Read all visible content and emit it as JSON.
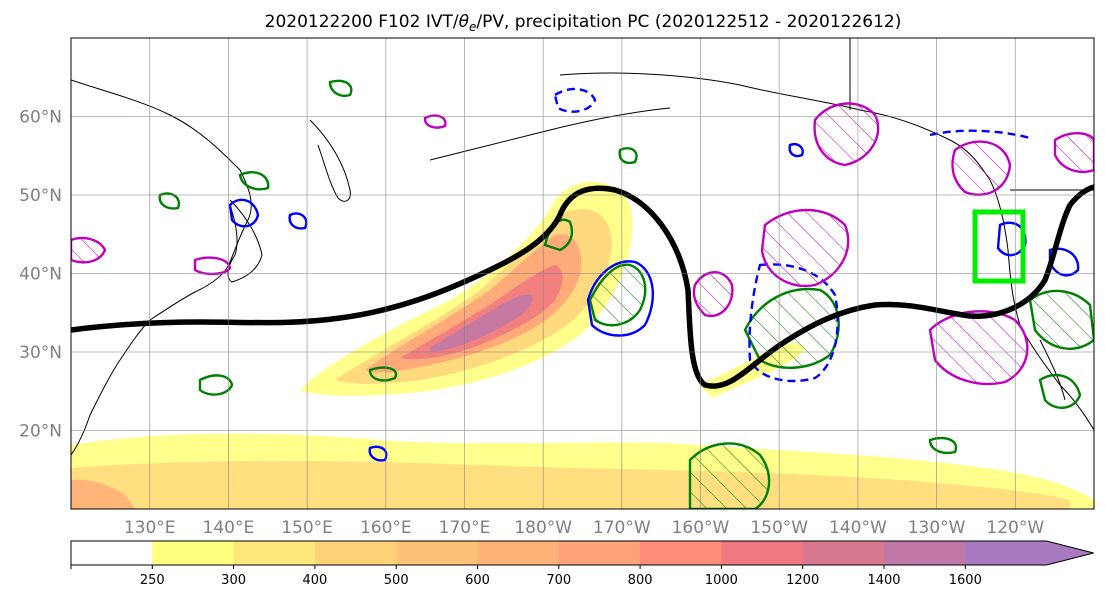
{
  "chart_data": {
    "type": "map",
    "title": "2020122200 F102 IVT/θe/PV, precipitation PC (2020122512 - 2020122612)",
    "title_parts": {
      "prefix": "2020122200 F102 IVT/",
      "theta": "θ",
      "sub": "e",
      "suffix": "/PV, precipitation PC (2020122512 - 2020122612)"
    },
    "lon_labels": [
      "130°E",
      "140°E",
      "150°E",
      "160°E",
      "170°E",
      "180°W",
      "170°W",
      "160°W",
      "150°W",
      "140°W",
      "130°W",
      "120°W"
    ],
    "lat_labels": [
      "60°N",
      "50°N",
      "40°N",
      "30°N",
      "20°N"
    ],
    "lon_range": [
      120,
      250
    ],
    "lat_range": [
      10,
      70
    ],
    "grid": true,
    "colorbar": {
      "levels": [
        250,
        300,
        400,
        500,
        600,
        700,
        800,
        1000,
        1200,
        1400,
        1600
      ],
      "labels": [
        "250",
        "300",
        "400",
        "500",
        "600",
        "700",
        "800",
        "1000",
        "1200",
        "1400",
        "1600"
      ],
      "colors": [
        "#ffff80",
        "#ffe87a",
        "#ffd27a",
        "#ffc078",
        "#ffb278",
        "#ffa278",
        "#ff8c78",
        "#f07880",
        "#d87890",
        "#c078a8",
        "#a878c0"
      ],
      "extend": "max"
    },
    "contours": {
      "thick_line_color": "#000000",
      "theta_e_color": "#008000",
      "pv_positive_color": "#0000ff",
      "precip_pc_color": "#c000c0",
      "target_box_color": "#00ee00"
    }
  }
}
